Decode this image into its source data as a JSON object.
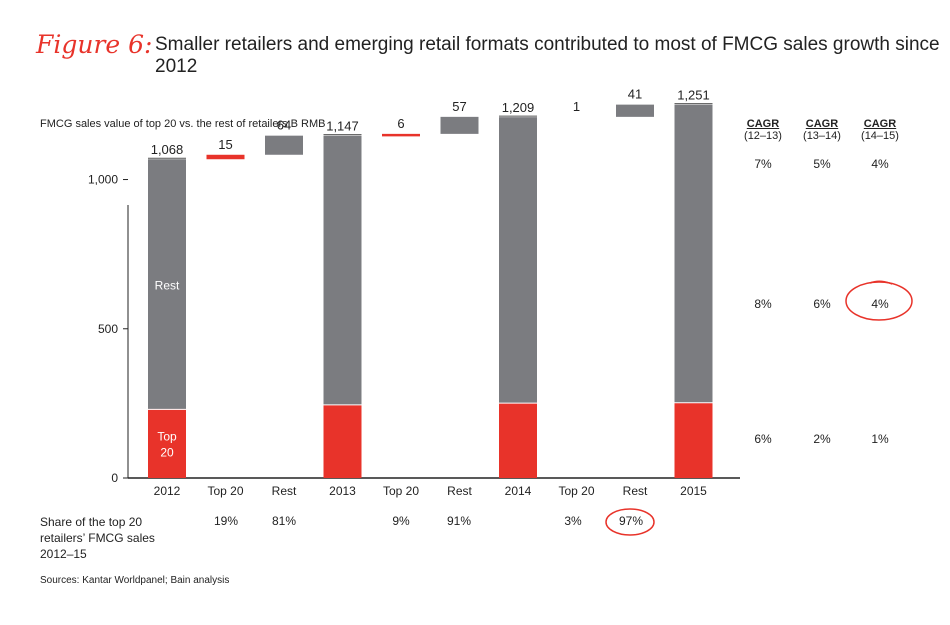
{
  "figure_label": "Figure 6:",
  "figure_title": "Smaller retailers and emerging retail formats contributed to most of FMCG sales growth since 2012",
  "source": "Sources: Kantar Worldpanel; Bain analysis",
  "share": {
    "label": "Share of the top 20 retailers’ FMCG sales 2012–15",
    "values": [
      "19%",
      "81%",
      "9%",
      "91%",
      "3%",
      "97%"
    ]
  },
  "cagr": {
    "headers": [
      {
        "title": "CAGR",
        "period": "(12–13)"
      },
      {
        "title": "CAGR",
        "period": "(13–14)"
      },
      {
        "title": "CAGR",
        "period": "(14–15)"
      }
    ],
    "rows": [
      [
        "7%",
        "5%",
        "4%"
      ],
      [
        "8%",
        "6%",
        "4%"
      ],
      [
        "6%",
        "2%",
        "1%"
      ]
    ]
  },
  "colors": {
    "rest": "#7b7c80",
    "top20": "#e8332a",
    "accent": "#e8332a"
  },
  "chart_data": {
    "type": "bar",
    "subtitle": "FMCG sales value of top 20 vs. the rest of retailers B RMB",
    "categories": [
      "2012",
      "Top 20",
      "Rest",
      "2013",
      "Top 20",
      "Rest",
      "2014",
      "Top 20",
      "Rest",
      "2015"
    ],
    "ylim": [
      0,
      1300
    ],
    "yticks": [
      0,
      500,
      1000
    ],
    "ytick_labels": [
      "0",
      "500",
      "1,000"
    ],
    "totals": [
      {
        "category": "2012",
        "top20": 230,
        "rest": 838,
        "total": 1068,
        "label": "1,068"
      },
      {
        "category": "2013",
        "top20": 245,
        "rest": 902,
        "total": 1147,
        "label": "1,147"
      },
      {
        "category": "2014",
        "top20": 251,
        "rest": 958,
        "total": 1209,
        "label": "1,209"
      },
      {
        "category": "2015",
        "top20": 252,
        "rest": 999,
        "total": 1251,
        "label": "1,251"
      }
    ],
    "increments": [
      {
        "category": "Top 20",
        "base": 1068,
        "value": 15,
        "label": "15",
        "series": "top20"
      },
      {
        "category": "Rest",
        "base": 1083,
        "value": 64,
        "label": "64",
        "series": "rest"
      },
      {
        "category": "Top 20",
        "base": 1147,
        "value": 6,
        "label": "6",
        "series": "top20"
      },
      {
        "category": "Rest",
        "base": 1153,
        "value": 57,
        "label": "57",
        "series": "rest"
      },
      {
        "category": "Top 20",
        "base": 1209,
        "value": 1,
        "label": "1",
        "series": "top20"
      },
      {
        "category": "Rest",
        "base": 1210,
        "value": 41,
        "label": "41",
        "series": "rest"
      }
    ],
    "segment_labels": {
      "rest": "Rest",
      "top20": [
        "Top",
        "20"
      ]
    },
    "grid": false
  }
}
